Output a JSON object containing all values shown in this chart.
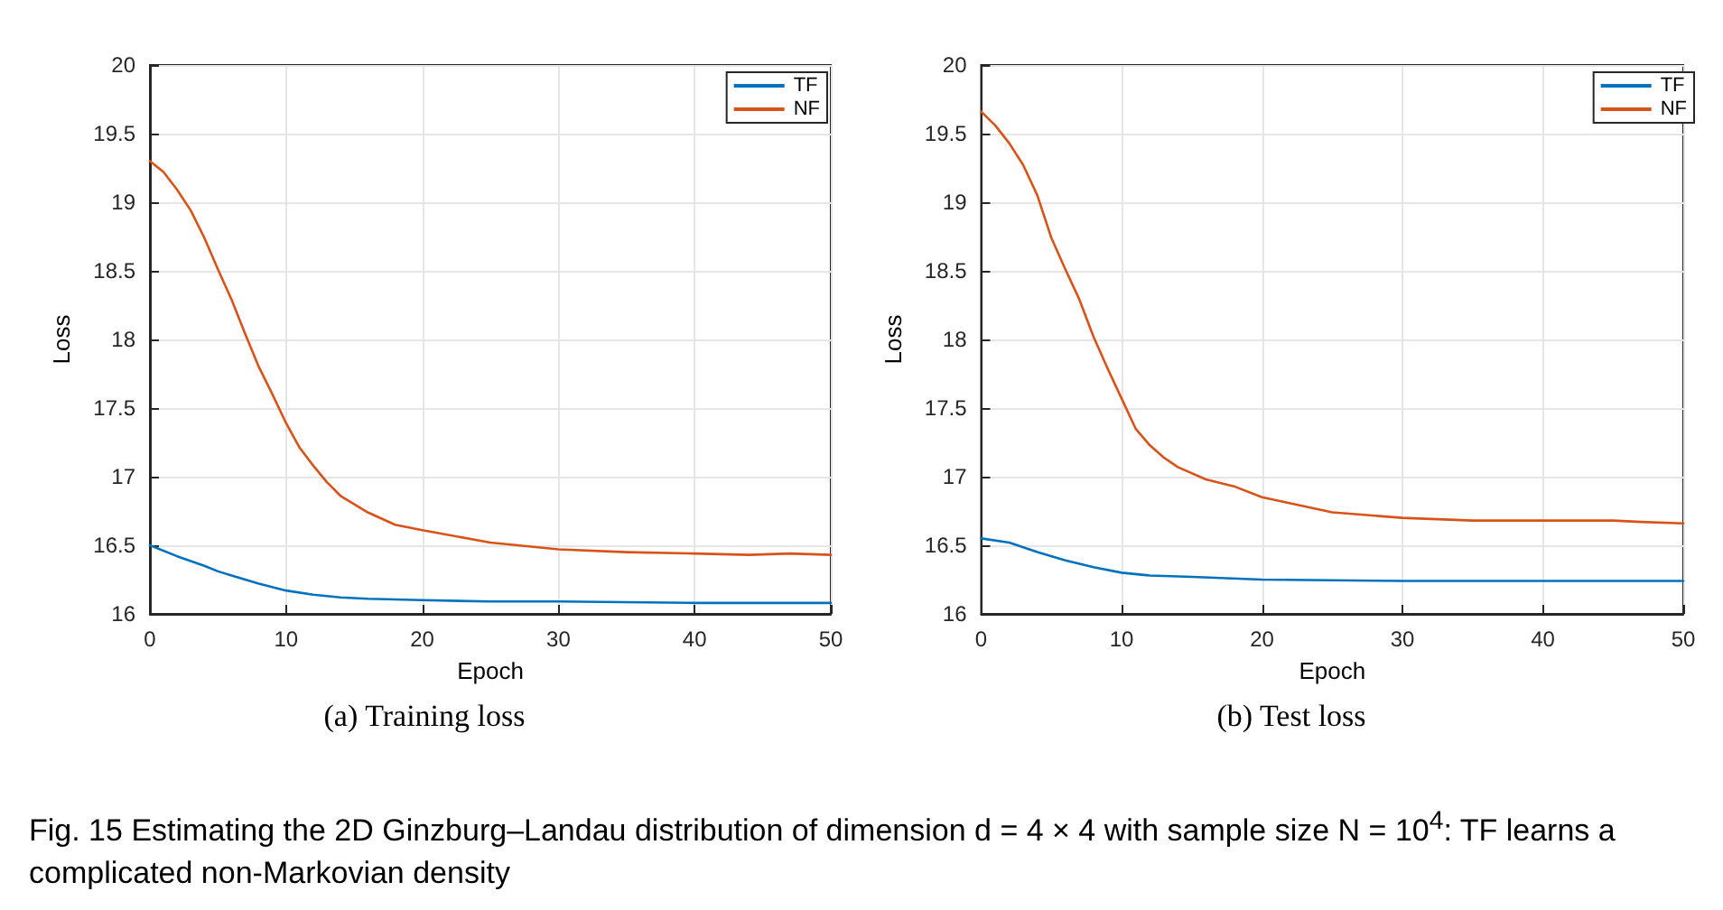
{
  "chart_data": [
    {
      "type": "line",
      "title": "(a) Training loss",
      "xlabel": "Epoch",
      "ylabel": "Loss",
      "xlim": [
        0,
        50
      ],
      "xticks": [
        0,
        10,
        20,
        30,
        40,
        50
      ],
      "ylim": [
        16,
        20
      ],
      "yticks": [
        16,
        16.5,
        17,
        17.5,
        18,
        18.5,
        19,
        19.5,
        20
      ],
      "grid": true,
      "legend": "top right",
      "series": [
        {
          "name": "TF",
          "color": "#0072bd",
          "x": [
            0,
            2,
            4,
            5,
            6,
            8,
            10,
            12,
            14,
            16,
            20,
            25,
            30,
            40,
            50
          ],
          "values": [
            16.5,
            16.42,
            16.35,
            16.31,
            16.28,
            16.22,
            16.17,
            16.14,
            16.12,
            16.11,
            16.1,
            16.09,
            16.09,
            16.08,
            16.08
          ]
        },
        {
          "name": "NF",
          "color": "#d95319",
          "x": [
            0,
            1,
            2,
            3,
            4,
            5,
            6,
            7,
            8,
            9,
            10,
            11,
            12,
            13,
            14,
            16,
            18,
            20,
            25,
            30,
            35,
            40,
            44,
            47,
            50
          ],
          "values": [
            19.3,
            19.22,
            19.09,
            18.94,
            18.74,
            18.51,
            18.29,
            18.04,
            17.8,
            17.6,
            17.39,
            17.21,
            17.08,
            16.96,
            16.86,
            16.74,
            16.65,
            16.61,
            16.52,
            16.47,
            16.45,
            16.44,
            16.43,
            16.44,
            16.43
          ]
        }
      ]
    },
    {
      "type": "line",
      "title": "(b) Test loss",
      "xlabel": "Epoch",
      "ylabel": "Loss",
      "xlim": [
        0,
        50
      ],
      "xticks": [
        0,
        10,
        20,
        30,
        40,
        50
      ],
      "ylim": [
        16,
        20
      ],
      "yticks": [
        16,
        16.5,
        17,
        17.5,
        18,
        18.5,
        19,
        19.5,
        20
      ],
      "grid": true,
      "legend": "top right",
      "annotations": [
        "Fig. 15  Estimating the 2D Ginzburg–Landau distribution of dimension d = 4 × 4 with sample size N = 10$^{4}$: TF learns a complicated non-Markovian density"
      ],
      "series": [
        {
          "name": "TF",
          "color": "#0072bd",
          "x": [
            0,
            2,
            4,
            6,
            8,
            10,
            12,
            15,
            20,
            30,
            40,
            50
          ],
          "values": [
            16.55,
            16.52,
            16.45,
            16.39,
            16.34,
            16.3,
            16.28,
            16.27,
            16.25,
            16.24,
            16.24,
            16.24
          ]
        },
        {
          "name": "NF",
          "color": "#d95319",
          "x": [
            0,
            1,
            2,
            3,
            4,
            5,
            6,
            7,
            8,
            9,
            10,
            11,
            12,
            13,
            14,
            16,
            18,
            20,
            25,
            30,
            35,
            40,
            45,
            47,
            50
          ],
          "values": [
            19.66,
            19.56,
            19.43,
            19.27,
            19.05,
            18.74,
            18.51,
            18.29,
            18.02,
            17.79,
            17.57,
            17.35,
            17.23,
            17.14,
            17.07,
            16.98,
            16.93,
            16.85,
            16.74,
            16.7,
            16.68,
            16.68,
            16.68,
            16.67,
            16.66
          ]
        }
      ]
    }
  ]
}
